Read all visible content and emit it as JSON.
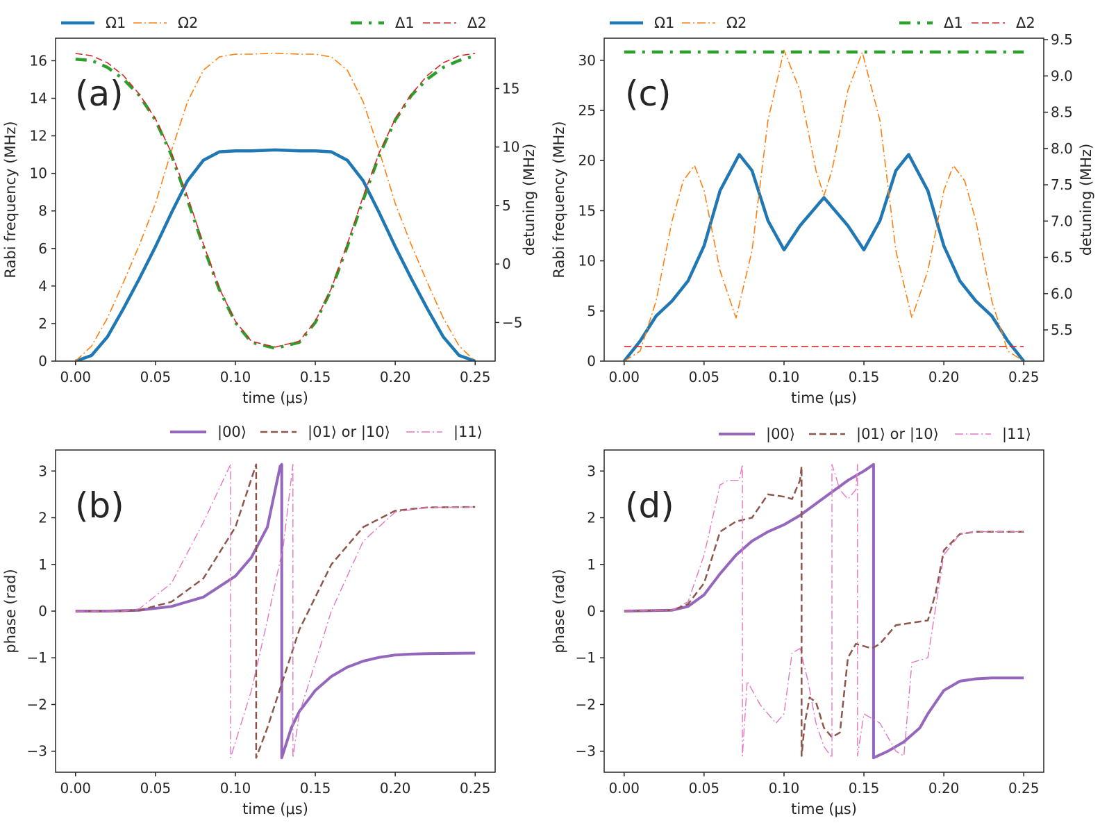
{
  "chart_data": [
    {
      "id": "a",
      "type": "line",
      "panel_label": "(a)",
      "xlabel": "time (μs)",
      "ylabel": "Rabi frequency (MHz)",
      "y2label": "detuning (MHz)",
      "xlim": [
        -0.0125,
        0.2625
      ],
      "ylim": [
        0,
        17.2
      ],
      "y2lim": [
        -8.3,
        19.3
      ],
      "xticks": [
        0.0,
        0.05,
        0.1,
        0.15,
        0.2,
        0.25
      ],
      "xtick_labels": [
        "0.00",
        "0.05",
        "0.10",
        "0.15",
        "0.20",
        "0.25"
      ],
      "yticks": [
        0,
        2,
        4,
        6,
        8,
        10,
        12,
        14,
        16
      ],
      "ytick_labels": [
        "0",
        "2",
        "4",
        "6",
        "8",
        "10",
        "12",
        "14",
        "16"
      ],
      "y2ticks": [
        -5,
        0,
        5,
        10,
        15
      ],
      "y2tick_labels": [
        "−5",
        "0",
        "5",
        "10",
        "15"
      ],
      "legend_left": [
        "Ω1",
        "Ω2"
      ],
      "legend_right": [
        "Δ1",
        "Δ2"
      ],
      "series": [
        {
          "name": "Ω1",
          "axis": "left",
          "color": "#1f77b4",
          "style": "solid",
          "width": 4.5,
          "x": [
            0,
            0.01,
            0.02,
            0.03,
            0.04,
            0.05,
            0.06,
            0.07,
            0.08,
            0.09,
            0.1,
            0.11,
            0.125,
            0.14,
            0.15,
            0.16,
            0.17,
            0.18,
            0.19,
            0.2,
            0.21,
            0.22,
            0.23,
            0.24,
            0.25
          ],
          "y": [
            0,
            0.3,
            1.3,
            2.8,
            4.4,
            6.1,
            7.9,
            9.6,
            10.7,
            11.15,
            11.2,
            11.2,
            11.25,
            11.2,
            11.2,
            11.15,
            10.7,
            9.6,
            7.9,
            6.1,
            4.4,
            2.8,
            1.3,
            0.3,
            0
          ]
        },
        {
          "name": "Ω2",
          "axis": "left",
          "color": "#ff7f0e",
          "style": "dashdot",
          "width": 1.6,
          "x": [
            0,
            0.01,
            0.02,
            0.03,
            0.04,
            0.05,
            0.06,
            0.07,
            0.08,
            0.09,
            0.1,
            0.11,
            0.125,
            0.14,
            0.15,
            0.16,
            0.17,
            0.18,
            0.19,
            0.2,
            0.21,
            0.22,
            0.23,
            0.24,
            0.25
          ],
          "y": [
            0,
            0.8,
            2.3,
            4.2,
            6.2,
            8.4,
            11.2,
            13.8,
            15.5,
            16.2,
            16.35,
            16.35,
            16.4,
            16.35,
            16.35,
            16.2,
            15.5,
            13.8,
            11.2,
            8.4,
            6.2,
            4.2,
            2.3,
            0.8,
            0
          ]
        },
        {
          "name": "Δ1",
          "axis": "right",
          "color": "#2ca02c",
          "style": "dashdotthick",
          "width": 4.5,
          "x": [
            0,
            0.01,
            0.02,
            0.03,
            0.04,
            0.05,
            0.06,
            0.07,
            0.08,
            0.09,
            0.1,
            0.11,
            0.125,
            0.14,
            0.15,
            0.16,
            0.17,
            0.18,
            0.19,
            0.2,
            0.21,
            0.22,
            0.23,
            0.24,
            0.25
          ],
          "y": [
            17.5,
            17.4,
            16.8,
            15.8,
            14.4,
            12.3,
            9.3,
            5.5,
            1.5,
            -2.2,
            -5.0,
            -6.7,
            -7.2,
            -6.7,
            -5.0,
            -2.2,
            1.5,
            5.5,
            9.3,
            12.3,
            14.4,
            15.8,
            16.8,
            17.4,
            17.8
          ]
        },
        {
          "name": "Δ2",
          "axis": "right",
          "color": "#d62728",
          "style": "dashed",
          "width": 1.6,
          "x": [
            0,
            0.01,
            0.02,
            0.03,
            0.04,
            0.05,
            0.06,
            0.07,
            0.08,
            0.09,
            0.1,
            0.11,
            0.125,
            0.14,
            0.15,
            0.16,
            0.17,
            0.18,
            0.19,
            0.2,
            0.21,
            0.22,
            0.23,
            0.24,
            0.25
          ],
          "y": [
            18.0,
            17.8,
            17.2,
            16.1,
            14.5,
            12.4,
            9.5,
            5.8,
            1.7,
            -2.1,
            -4.9,
            -6.6,
            -7.1,
            -6.6,
            -4.9,
            -2.1,
            1.7,
            5.8,
            9.5,
            12.4,
            14.5,
            16.1,
            17.2,
            17.8,
            18.0
          ]
        }
      ]
    },
    {
      "id": "b",
      "type": "line",
      "panel_label": "(b)",
      "xlabel": "time (μs)",
      "ylabel": "phase (rad)",
      "xlim": [
        -0.0125,
        0.2625
      ],
      "ylim": [
        -3.45,
        3.45
      ],
      "xticks": [
        0.0,
        0.05,
        0.1,
        0.15,
        0.2,
        0.25
      ],
      "xtick_labels": [
        "0.00",
        "0.05",
        "0.10",
        "0.15",
        "0.20",
        "0.25"
      ],
      "yticks": [
        -3,
        -2,
        -1,
        0,
        1,
        2,
        3
      ],
      "ytick_labels": [
        "−3",
        "−2",
        "−1",
        "0",
        "1",
        "2",
        "3"
      ],
      "legend": [
        "|00⟩",
        "|01⟩ or |10⟩",
        "|11⟩"
      ],
      "series": [
        {
          "name": "|00⟩",
          "color": "#9467bd",
          "style": "solid",
          "width": 4,
          "x": [
            0,
            0.02,
            0.04,
            0.06,
            0.08,
            0.1,
            0.11,
            0.12,
            0.128,
            0.129,
            0.129,
            0.135,
            0.14,
            0.15,
            0.16,
            0.17,
            0.18,
            0.19,
            0.2,
            0.21,
            0.22,
            0.25
          ],
          "y": [
            0,
            0,
            0.02,
            0.1,
            0.3,
            0.75,
            1.15,
            1.8,
            3.1,
            3.14,
            -3.14,
            -2.5,
            -2.15,
            -1.7,
            -1.4,
            -1.2,
            -1.07,
            -0.99,
            -0.94,
            -0.92,
            -0.91,
            -0.9
          ]
        },
        {
          "name": "|01⟩ or |10⟩",
          "color": "#8c564b",
          "style": "dashed",
          "width": 2.5,
          "x": [
            0,
            0.03,
            0.04,
            0.06,
            0.08,
            0.1,
            0.113,
            0.113,
            0.12,
            0.14,
            0.16,
            0.18,
            0.2,
            0.22,
            0.25
          ],
          "y": [
            0,
            0,
            0.02,
            0.2,
            0.7,
            1.8,
            3.14,
            -3.14,
            -2.5,
            -0.4,
            1.0,
            1.8,
            2.15,
            2.22,
            2.23
          ]
        },
        {
          "name": "|11⟩",
          "color": "#e377c2",
          "style": "dashdot",
          "width": 1.4,
          "x": [
            0,
            0.03,
            0.04,
            0.06,
            0.08,
            0.097,
            0.097,
            0.11,
            0.12,
            0.13,
            0.136,
            0.136,
            0.14,
            0.16,
            0.18,
            0.2,
            0.22,
            0.25
          ],
          "y": [
            0,
            0,
            0.05,
            0.6,
            1.9,
            3.14,
            -3.14,
            -1.7,
            -0.2,
            1.4,
            3.14,
            -3.14,
            -2.2,
            0.0,
            1.5,
            2.12,
            2.22,
            2.23
          ]
        }
      ]
    },
    {
      "id": "c",
      "type": "line",
      "panel_label": "(c)",
      "xlabel": "time (μs)",
      "ylabel": "Rabi frequency (MHz)",
      "y2label": "detuning (MHz)",
      "xlim": [
        -0.0125,
        0.2625
      ],
      "ylim": [
        0,
        32.2
      ],
      "y2lim": [
        5.07,
        9.52
      ],
      "xticks": [
        0.0,
        0.05,
        0.1,
        0.15,
        0.2,
        0.25
      ],
      "xtick_labels": [
        "0.00",
        "0.05",
        "0.10",
        "0.15",
        "0.20",
        "0.25"
      ],
      "yticks": [
        0,
        5,
        10,
        15,
        20,
        25,
        30
      ],
      "ytick_labels": [
        "0",
        "5",
        "10",
        "15",
        "20",
        "25",
        "30"
      ],
      "y2ticks": [
        5.5,
        6.0,
        6.5,
        7.0,
        7.5,
        8.0,
        8.5,
        9.0,
        9.5
      ],
      "y2tick_labels": [
        "5.5",
        "6.0",
        "6.5",
        "7.0",
        "7.5",
        "8.0",
        "8.5",
        "9.0",
        "9.5"
      ],
      "legend_left": [
        "Ω1",
        "Ω2"
      ],
      "legend_right": [
        "Δ1",
        "Δ2"
      ],
      "series": [
        {
          "name": "Ω1",
          "axis": "left",
          "color": "#1f77b4",
          "style": "solid",
          "width": 4.5,
          "x": [
            0,
            0.01,
            0.02,
            0.03,
            0.04,
            0.05,
            0.06,
            0.072,
            0.08,
            0.09,
            0.1,
            0.11,
            0.125,
            0.14,
            0.15,
            0.16,
            0.17,
            0.178,
            0.19,
            0.2,
            0.21,
            0.22,
            0.23,
            0.24,
            0.25
          ],
          "y": [
            0,
            2.0,
            4.5,
            6.0,
            8.0,
            11.5,
            17.0,
            20.6,
            19.0,
            14.0,
            11.1,
            13.5,
            16.3,
            13.5,
            11.1,
            14.0,
            19.0,
            20.6,
            17.0,
            11.5,
            8.0,
            6.0,
            4.5,
            2.0,
            0
          ]
        },
        {
          "name": "Ω2",
          "axis": "left",
          "color": "#ff7f0e",
          "style": "dashdot",
          "width": 1.6,
          "x": [
            0,
            0.01,
            0.02,
            0.03,
            0.037,
            0.044,
            0.05,
            0.06,
            0.07,
            0.08,
            0.09,
            0.1,
            0.11,
            0.12,
            0.125,
            0.13,
            0.14,
            0.149,
            0.16,
            0.17,
            0.18,
            0.19,
            0.2,
            0.206,
            0.213,
            0.22,
            0.23,
            0.24,
            0.25
          ],
          "y": [
            0,
            1.0,
            6.0,
            14.0,
            18.0,
            19.5,
            17.0,
            9.0,
            4.3,
            11.0,
            24.0,
            31.0,
            27.0,
            19.0,
            16.5,
            19.0,
            27.0,
            30.8,
            24.0,
            11.0,
            4.3,
            9.0,
            17.0,
            19.5,
            18.0,
            14.0,
            6.0,
            1.0,
            0
          ]
        },
        {
          "name": "Δ1",
          "axis": "right",
          "color": "#2ca02c",
          "style": "dashdotthick",
          "width": 4.5,
          "x": [
            0,
            0.25
          ],
          "y": [
            9.33,
            9.33
          ]
        },
        {
          "name": "Δ2",
          "axis": "right",
          "color": "#d62728",
          "style": "dashed",
          "width": 1.6,
          "x": [
            0,
            0.25
          ],
          "y": [
            5.27,
            5.27
          ]
        }
      ]
    },
    {
      "id": "d",
      "type": "line",
      "panel_label": "(d)",
      "xlabel": "time (μs)",
      "ylabel": "phase (rad)",
      "xlim": [
        -0.0125,
        0.2625
      ],
      "ylim": [
        -3.45,
        3.45
      ],
      "xticks": [
        0.0,
        0.05,
        0.1,
        0.15,
        0.2,
        0.25
      ],
      "xtick_labels": [
        "0.00",
        "0.05",
        "0.10",
        "0.15",
        "0.20",
        "0.25"
      ],
      "yticks": [
        -3,
        -2,
        -1,
        0,
        1,
        2,
        3
      ],
      "ytick_labels": [
        "−3",
        "−2",
        "−1",
        "0",
        "1",
        "2",
        "3"
      ],
      "legend": [
        "|00⟩",
        "|01⟩ or |10⟩",
        "|11⟩"
      ],
      "series": [
        {
          "name": "|00⟩",
          "color": "#9467bd",
          "style": "solid",
          "width": 4,
          "x": [
            0,
            0.03,
            0.04,
            0.05,
            0.06,
            0.07,
            0.08,
            0.09,
            0.1,
            0.11,
            0.12,
            0.13,
            0.14,
            0.15,
            0.156,
            0.156,
            0.165,
            0.175,
            0.185,
            0.19,
            0.2,
            0.21,
            0.22,
            0.23,
            0.25
          ],
          "y": [
            0,
            0.02,
            0.1,
            0.35,
            0.8,
            1.2,
            1.5,
            1.7,
            1.85,
            2.05,
            2.3,
            2.55,
            2.8,
            3.0,
            3.14,
            -3.14,
            -3.0,
            -2.8,
            -2.5,
            -2.2,
            -1.7,
            -1.5,
            -1.45,
            -1.43,
            -1.43
          ]
        },
        {
          "name": "|01⟩ or |10⟩",
          "color": "#8c564b",
          "style": "dashed",
          "width": 2.5,
          "x": [
            0,
            0.03,
            0.04,
            0.05,
            0.06,
            0.07,
            0.08,
            0.09,
            0.1,
            0.105,
            0.11,
            0.111,
            0.111,
            0.113,
            0.116,
            0.12,
            0.125,
            0.13,
            0.135,
            0.14,
            0.145,
            0.15,
            0.155,
            0.16,
            0.17,
            0.18,
            0.19,
            0.195,
            0.2,
            0.21,
            0.22,
            0.25
          ],
          "y": [
            0,
            0.02,
            0.15,
            0.6,
            1.7,
            1.92,
            2.0,
            2.5,
            2.45,
            2.4,
            2.8,
            3.1,
            -3.1,
            -2.4,
            -1.85,
            -1.95,
            -2.5,
            -2.7,
            -2.6,
            -1.0,
            -0.7,
            -0.75,
            -0.8,
            -0.7,
            -0.3,
            -0.25,
            -0.2,
            0.4,
            1.3,
            1.65,
            1.7,
            1.7
          ]
        },
        {
          "name": "|11⟩",
          "color": "#e377c2",
          "style": "dashdot",
          "width": 1.4,
          "x": [
            0,
            0.03,
            0.04,
            0.05,
            0.06,
            0.065,
            0.072,
            0.074,
            0.074,
            0.077,
            0.085,
            0.095,
            0.1,
            0.105,
            0.11,
            0.115,
            0.12,
            0.125,
            0.13,
            0.13,
            0.135,
            0.14,
            0.145,
            0.146,
            0.146,
            0.15,
            0.16,
            0.17,
            0.175,
            0.18,
            0.19,
            0.2,
            0.21,
            0.22,
            0.25
          ],
          "y": [
            0,
            0.02,
            0.2,
            1.2,
            2.7,
            2.8,
            2.8,
            3.14,
            -3.1,
            -1.5,
            -2.0,
            -2.4,
            -2.2,
            -0.9,
            -0.8,
            -1.5,
            -2.4,
            -2.9,
            -3.14,
            3.14,
            2.6,
            2.4,
            2.6,
            3.14,
            -3.1,
            -2.2,
            -2.4,
            -3.0,
            -3.1,
            -1.1,
            -1.0,
            1.2,
            1.65,
            1.7,
            1.7
          ]
        }
      ]
    }
  ]
}
